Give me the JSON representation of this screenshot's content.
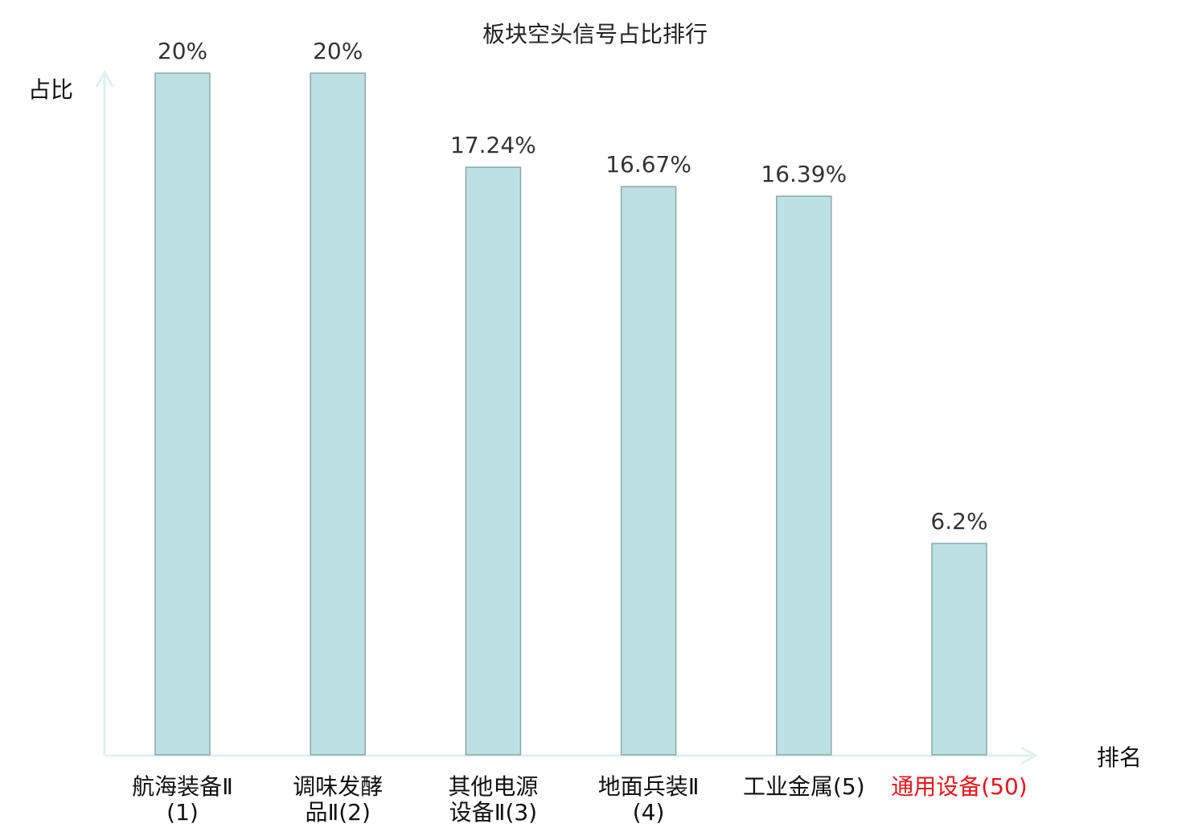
{
  "chart_data": {
    "type": "bar",
    "title": "板块空头信号占比排行",
    "ylabel": "占比",
    "xlabel": "排名",
    "ylim": [
      0,
      20
    ],
    "grid": false,
    "categories": [
      {
        "label": "航海装备Ⅱ(1)",
        "lines": [
          "航海装备",
          "Ⅱ(1)"
        ],
        "highlight": false
      },
      {
        "label": "调味发酵品Ⅱ(2)",
        "lines": [
          "调味发酵",
          "品Ⅱ(2)"
        ],
        "highlight": false
      },
      {
        "label": "其他电源设备Ⅱ(3)",
        "lines": [
          "其他电源",
          "设备Ⅱ(3)"
        ],
        "highlight": false
      },
      {
        "label": "地面兵装Ⅱ(4)",
        "lines": [
          "地面兵装",
          "Ⅱ(4)"
        ],
        "highlight": false
      },
      {
        "label": "工业金属(5)",
        "lines": [
          "工业金属(5)"
        ],
        "highlight": false
      },
      {
        "label": "通用设备(50)",
        "lines": [
          "通用设备(50)"
        ],
        "highlight": true
      }
    ],
    "values": [
      20,
      20,
      17.24,
      16.67,
      16.39,
      6.2
    ],
    "value_labels": [
      "20%",
      "20%",
      "17.24%",
      "16.67%",
      "16.39%",
      "6.2%"
    ],
    "colors": {
      "bar_fill": "#bde0e3",
      "bar_stroke": "#8aa8aa",
      "axis": "#dcf2ef",
      "highlight": "#e8141c",
      "text": "#111111"
    }
  }
}
